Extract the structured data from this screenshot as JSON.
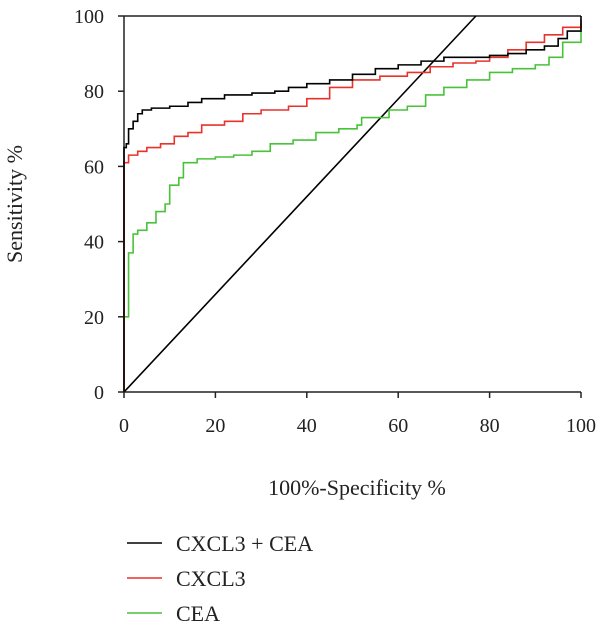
{
  "chart_data": {
    "type": "line",
    "title": "",
    "xlabel": "100%-Specificity %",
    "ylabel": "Sensitivity %",
    "xlim": [
      0,
      100
    ],
    "ylim": [
      0,
      100
    ],
    "x_ticks": [
      "0",
      "20",
      "40",
      "60",
      "80",
      "100"
    ],
    "y_ticks": [
      "0",
      "20",
      "40",
      "60",
      "80",
      "100"
    ],
    "grid": false,
    "legend_position": "bottom-left",
    "reference_line": {
      "x": [
        0,
        77
      ],
      "y": [
        0,
        100
      ],
      "color": "#000000"
    },
    "series": [
      {
        "name": "CXCL3 + CEA",
        "color": "#000000",
        "points": [
          [
            0,
            0
          ],
          [
            0,
            65
          ],
          [
            0.5,
            66
          ],
          [
            1,
            70
          ],
          [
            2,
            72
          ],
          [
            3,
            74
          ],
          [
            4,
            75
          ],
          [
            6,
            75.5
          ],
          [
            8,
            75.5
          ],
          [
            10,
            76
          ],
          [
            14,
            77
          ],
          [
            17,
            78
          ],
          [
            22,
            79
          ],
          [
            28,
            79.5
          ],
          [
            33,
            80
          ],
          [
            36,
            81
          ],
          [
            40,
            82
          ],
          [
            45,
            83
          ],
          [
            50,
            84.5
          ],
          [
            55,
            86
          ],
          [
            60,
            87
          ],
          [
            65,
            88
          ],
          [
            70,
            89
          ],
          [
            75,
            89
          ],
          [
            80,
            89.5
          ],
          [
            84,
            90
          ],
          [
            88,
            91
          ],
          [
            92,
            92
          ],
          [
            95,
            94
          ],
          [
            97,
            96
          ],
          [
            100,
            100
          ]
        ]
      },
      {
        "name": "CXCL3",
        "color": "#e8322a",
        "points": [
          [
            0,
            0
          ],
          [
            0,
            61
          ],
          [
            1,
            63
          ],
          [
            3,
            64
          ],
          [
            5,
            65
          ],
          [
            8,
            66
          ],
          [
            11,
            68
          ],
          [
            14,
            69
          ],
          [
            17,
            71
          ],
          [
            22,
            72
          ],
          [
            26,
            74
          ],
          [
            30,
            75
          ],
          [
            36,
            76
          ],
          [
            40,
            78
          ],
          [
            45,
            81
          ],
          [
            50,
            83
          ],
          [
            56,
            84
          ],
          [
            62,
            85
          ],
          [
            67,
            86.5
          ],
          [
            72,
            87.5
          ],
          [
            77,
            88
          ],
          [
            80,
            89
          ],
          [
            84,
            91
          ],
          [
            88,
            93
          ],
          [
            92,
            95
          ],
          [
            96,
            97
          ],
          [
            100,
            99
          ]
        ]
      },
      {
        "name": "CEA",
        "color": "#49c23a",
        "points": [
          [
            0,
            0
          ],
          [
            0,
            20
          ],
          [
            1,
            21
          ],
          [
            1,
            37
          ],
          [
            2,
            42
          ],
          [
            3,
            43
          ],
          [
            5,
            45
          ],
          [
            7,
            48
          ],
          [
            9,
            50
          ],
          [
            10,
            55
          ],
          [
            12,
            57
          ],
          [
            13,
            61
          ],
          [
            16,
            62
          ],
          [
            20,
            62.5
          ],
          [
            24,
            63
          ],
          [
            28,
            64
          ],
          [
            32,
            66
          ],
          [
            37,
            67
          ],
          [
            42,
            69
          ],
          [
            47,
            70
          ],
          [
            51,
            71
          ],
          [
            52,
            73
          ],
          [
            58,
            75
          ],
          [
            62,
            76
          ],
          [
            66,
            79
          ],
          [
            70,
            81
          ],
          [
            75,
            83
          ],
          [
            80,
            85
          ],
          [
            85,
            86
          ],
          [
            90,
            87
          ],
          [
            93,
            89
          ],
          [
            96,
            93
          ],
          [
            100,
            98
          ]
        ]
      }
    ]
  }
}
